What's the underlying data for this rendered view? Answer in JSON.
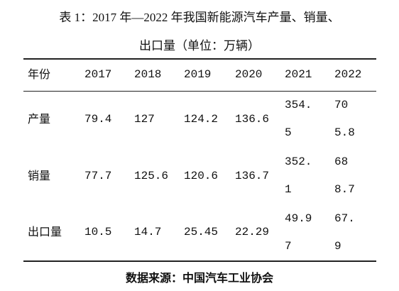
{
  "title": {
    "lines": [
      "表 1：2017 年—2022 年我国新能源汽车产量、销量、",
      "出口量（单位：万辆）"
    ]
  },
  "table": {
    "header": [
      "年份",
      "2017",
      "2018",
      "2019",
      "2020",
      "2021",
      "2022"
    ],
    "rows": [
      [
        "产量",
        "79.4",
        "127",
        "124.2",
        "136.6",
        "354.5",
        "705.8"
      ],
      [
        "销量",
        "77.7",
        "125.6",
        "120.6",
        "136.7",
        "352.1",
        "688.7"
      ],
      [
        "出口量",
        "10.5",
        "14.7",
        "25.45",
        "22.29",
        "49.97",
        "67.9"
      ]
    ]
  },
  "source": "数据来源：中国汽车工业协会"
}
